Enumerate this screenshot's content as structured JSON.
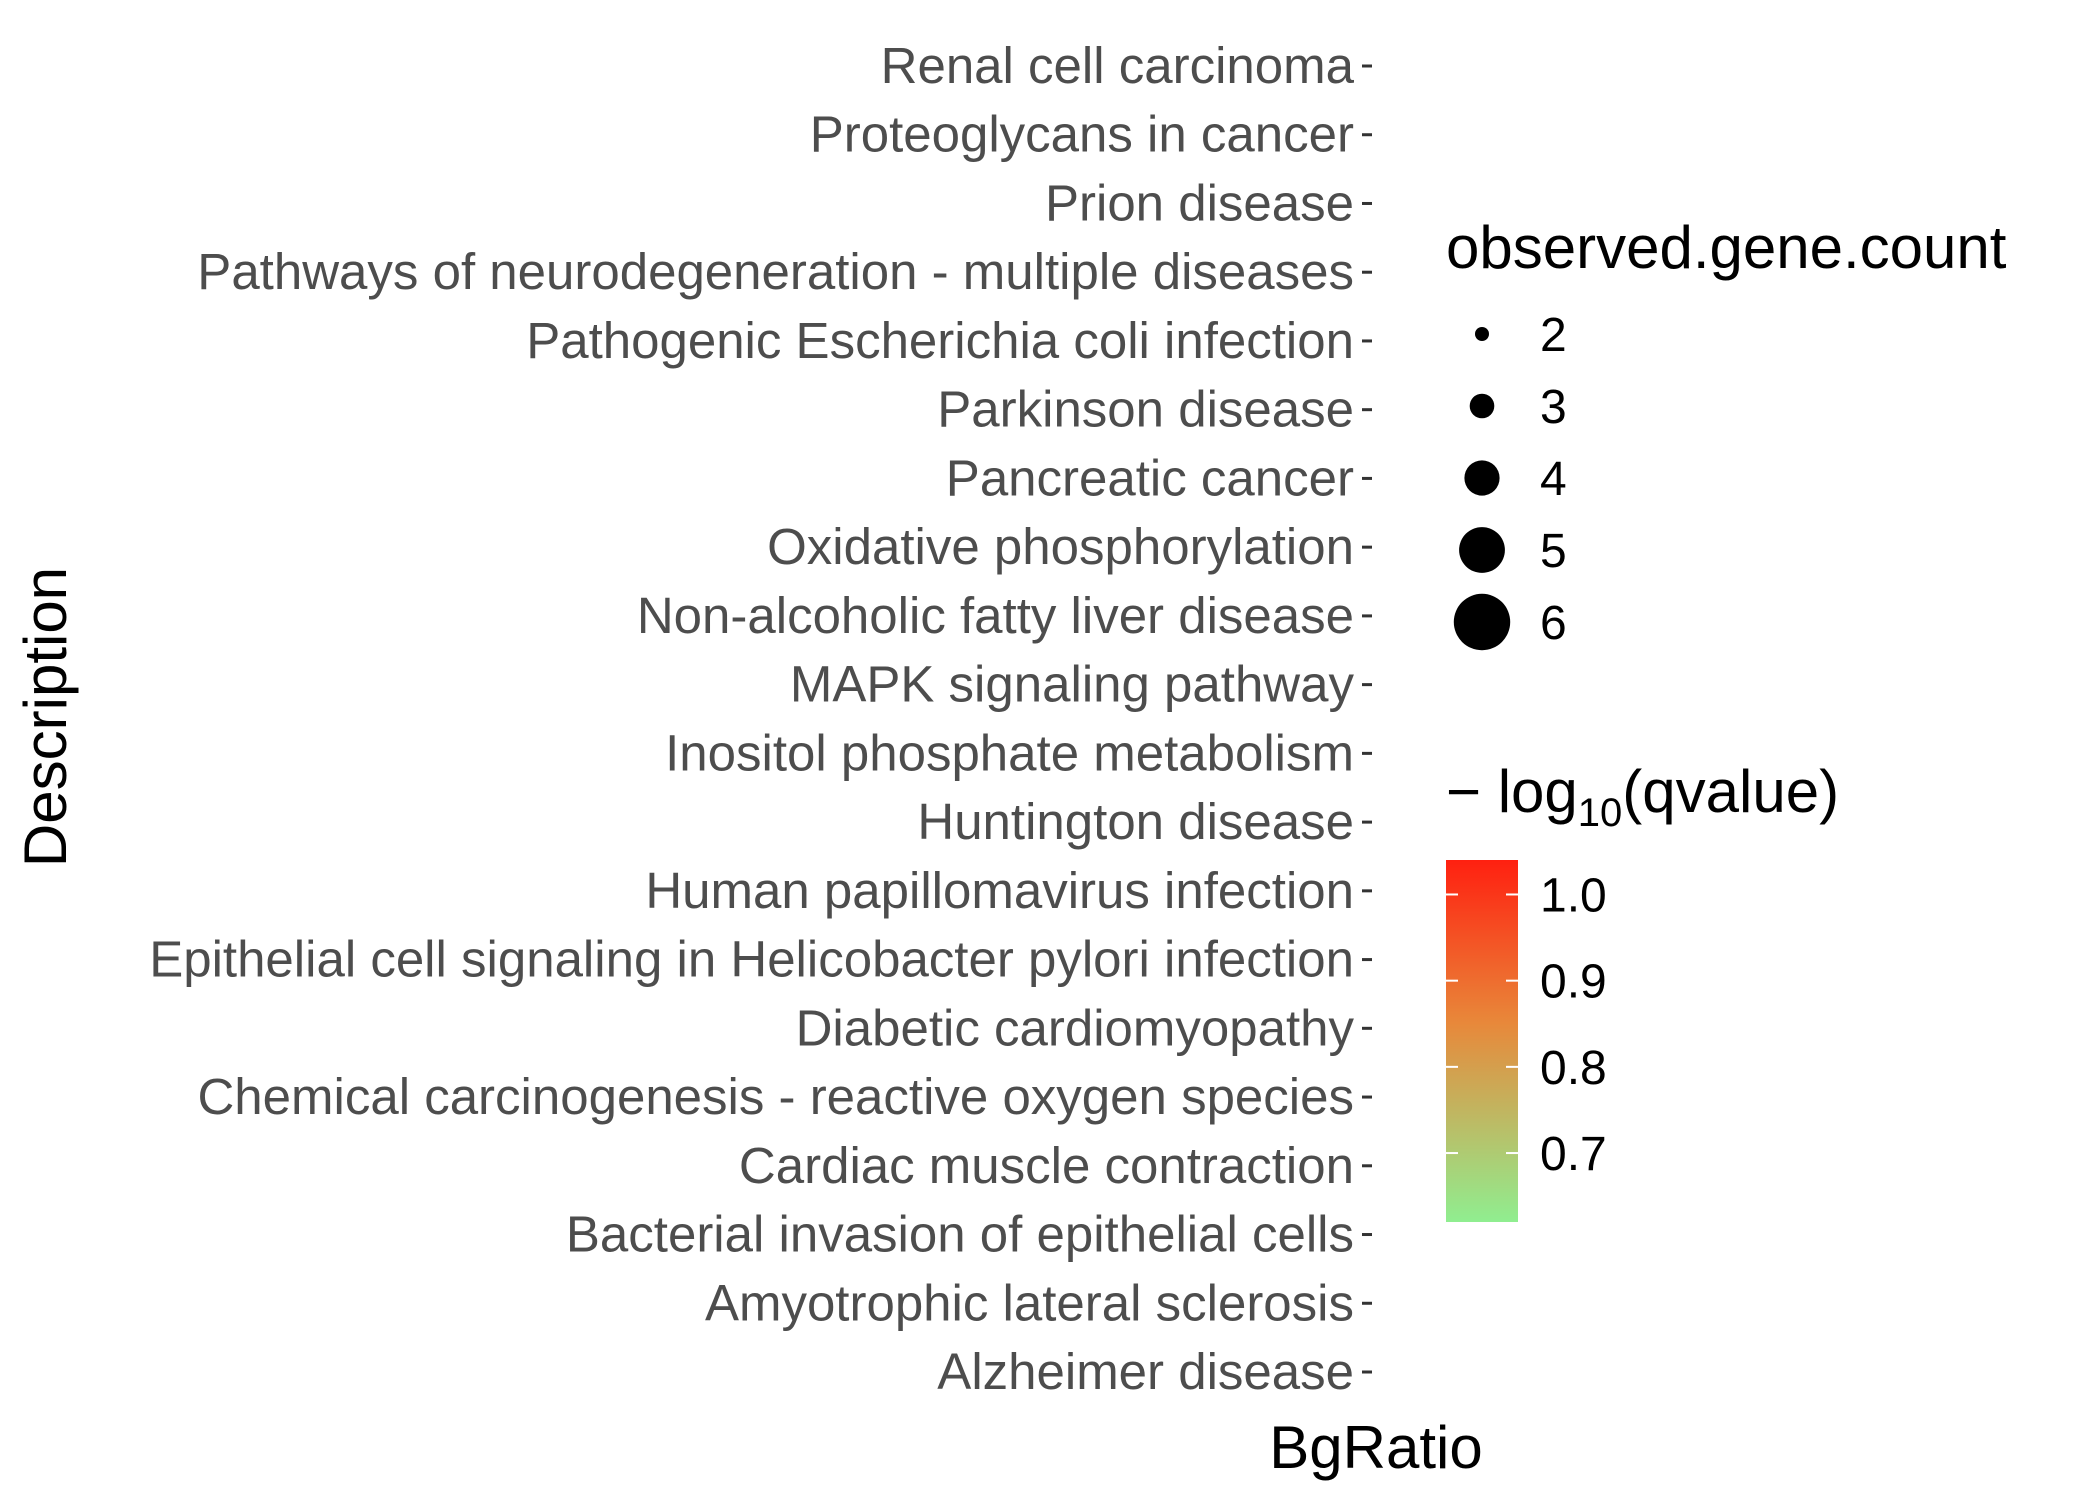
{
  "chart_data": {
    "type": "scatter",
    "xlabel": "BgRatio",
    "ylabel": "Description",
    "categories": [
      "Renal cell carcinoma",
      "Proteoglycans in cancer",
      "Prion disease",
      "Pathways of neurodegeneration - multiple diseases",
      "Pathogenic Escherichia coli infection",
      "Parkinson disease",
      "Pancreatic cancer",
      "Oxidative phosphorylation",
      "Non-alcoholic fatty liver disease",
      "MAPK signaling pathway",
      "Inositol phosphate metabolism",
      "Huntington disease",
      "Human papillomavirus infection",
      "Epithelial cell signaling in Helicobacter pylori infection",
      "Diabetic cardiomyopathy",
      "Chemical carcinogenesis - reactive oxygen species",
      "Cardiac muscle contraction",
      "Bacterial invasion of epithelial cells",
      "Amyotrophic lateral sclerosis",
      "Alzheimer disease"
    ],
    "points": [],
    "grid": false,
    "legend": {
      "placement": "right",
      "size": {
        "title": "observed.gene.count",
        "values": [
          2,
          3,
          4,
          5,
          6
        ]
      },
      "color": {
        "title_prefix": "− log",
        "title_sub": "10",
        "title_suffix": "(qvalue)",
        "ticks": [
          1.0,
          0.9,
          0.8,
          0.7
        ],
        "tick_labels": [
          "1.0",
          "0.9",
          "0.8",
          "0.7"
        ],
        "range": [
          0.62,
          1.04
        ],
        "low_color": "#90EE90",
        "mid_color": "#E8883A",
        "high_color": "#FF2010"
      }
    }
  }
}
